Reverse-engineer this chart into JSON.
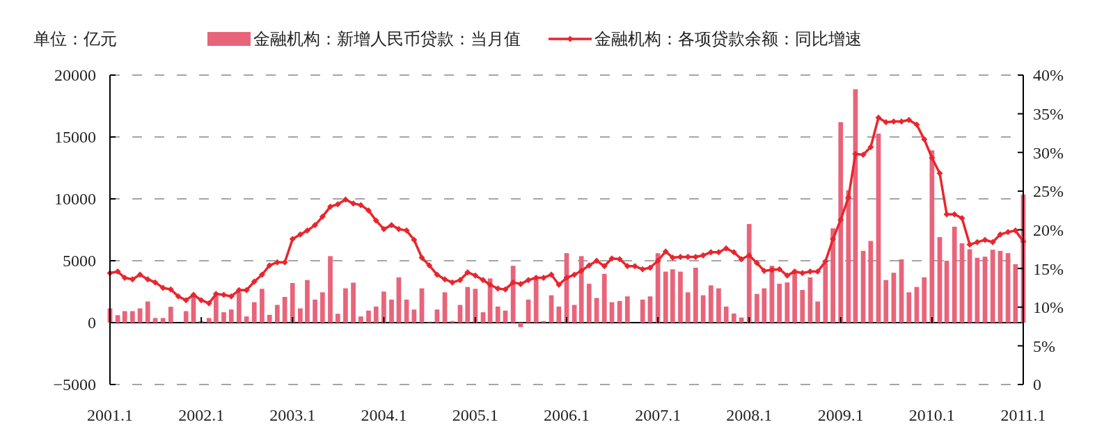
{
  "chart_data": {
    "type": "bar",
    "annotations": [
      "单位：亿元"
    ],
    "x": [
      "2001-01",
      "2001-02",
      "2001-03",
      "2001-04",
      "2001-05",
      "2001-06",
      "2001-07",
      "2001-08",
      "2001-09",
      "2001-10",
      "2001-11",
      "2001-12",
      "2002-01",
      "2002-02",
      "2002-03",
      "2002-04",
      "2002-05",
      "2002-06",
      "2002-07",
      "2002-08",
      "2002-09",
      "2002-10",
      "2002-11",
      "2002-12",
      "2003-01",
      "2003-02",
      "2003-03",
      "2003-04",
      "2003-05",
      "2003-06",
      "2003-07",
      "2003-08",
      "2003-09",
      "2003-10",
      "2003-11",
      "2003-12",
      "2004-01",
      "2004-02",
      "2004-03",
      "2004-04",
      "2004-05",
      "2004-06",
      "2004-07",
      "2004-08",
      "2004-09",
      "2004-10",
      "2004-11",
      "2004-12",
      "2005-01",
      "2005-02",
      "2005-03",
      "2005-04",
      "2005-05",
      "2005-06",
      "2005-07",
      "2005-08",
      "2005-09",
      "2005-10",
      "2005-11",
      "2005-12",
      "2006-01",
      "2006-02",
      "2006-03",
      "2006-04",
      "2006-05",
      "2006-06",
      "2006-07",
      "2006-08",
      "2006-09",
      "2006-10",
      "2006-11",
      "2006-12",
      "2007-01",
      "2007-02",
      "2007-03",
      "2007-04",
      "2007-05",
      "2007-06",
      "2007-07",
      "2007-08",
      "2007-09",
      "2007-10",
      "2007-11",
      "2007-12",
      "2008-01",
      "2008-02",
      "2008-03",
      "2008-04",
      "2008-05",
      "2008-06",
      "2008-07",
      "2008-08",
      "2008-09",
      "2008-10",
      "2008-11",
      "2008-12",
      "2009-01",
      "2009-02",
      "2009-03",
      "2009-04",
      "2009-05",
      "2009-06",
      "2009-07",
      "2009-08",
      "2009-09",
      "2009-10",
      "2009-11",
      "2009-12",
      "2010-01",
      "2010-02",
      "2010-03",
      "2010-04",
      "2010-05",
      "2010-06",
      "2010-07",
      "2010-08",
      "2010-09",
      "2010-10",
      "2010-11",
      "2010-12",
      "2011-01"
    ],
    "xlim": [
      "2001-01",
      "2011-01"
    ],
    "xticks": [
      {
        "value": "2001-01",
        "label": "2001.1"
      },
      {
        "value": "2002-01",
        "label": "2002.1"
      },
      {
        "value": "2003-01",
        "label": "2003.1"
      },
      {
        "value": "2004-01",
        "label": "2004.1"
      },
      {
        "value": "2005-01",
        "label": "2005.1"
      },
      {
        "value": "2006-01",
        "label": "2006.1"
      },
      {
        "value": "2007-01",
        "label": "2007.1"
      },
      {
        "value": "2008-01",
        "label": "2008.1"
      },
      {
        "value": "2009-01",
        "label": "2009.1"
      },
      {
        "value": "2010-01",
        "label": "2010.1"
      },
      {
        "value": "2011-01",
        "label": "2011.1"
      }
    ],
    "ylim": [
      -5000,
      20000
    ],
    "yticks": [
      {
        "value": -5000,
        "label": "−5000"
      },
      0,
      5000,
      10000,
      15000,
      20000
    ],
    "y2lim": [
      0,
      40
    ],
    "y2ticks": [
      0,
      {
        "value": 5,
        "label": "5%"
      },
      {
        "value": 10,
        "label": "10%"
      },
      {
        "value": 15,
        "label": "15%"
      },
      {
        "value": 20,
        "label": "20%"
      },
      {
        "value": 25,
        "label": "25%"
      },
      {
        "value": 30,
        "label": "30%"
      },
      {
        "value": 35,
        "label": "35%"
      },
      {
        "value": 40,
        "label": "40%"
      }
    ],
    "grid": "y",
    "legend": "top",
    "series": [
      {
        "name": "金融机构：新增人民币贷款：当月值",
        "color": "#e8647a",
        "values": [
          1150,
          600,
          930,
          930,
          1150,
          1710,
          370,
          370,
          1280,
          0,
          930,
          2170,
          130,
          370,
          2170,
          840,
          1060,
          2450,
          500,
          1650,
          2730,
          630,
          1430,
          2080,
          3200,
          1150,
          3440,
          1860,
          2450,
          5370,
          720,
          2770,
          3230,
          500,
          970,
          1300,
          2510,
          1860,
          3660,
          1860,
          1060,
          2770,
          -90,
          1060,
          2450,
          130,
          1430,
          2880,
          2730,
          840,
          3570,
          1300,
          970,
          4590,
          -370,
          1860,
          3510,
          130,
          2210,
          1300,
          5610,
          1430,
          5370,
          3140,
          1990,
          3940,
          1650,
          1750,
          2120,
          0,
          1860,
          2120,
          5610,
          4120,
          4310,
          4120,
          2450,
          4440,
          2210,
          3010,
          2770,
          1300,
          740,
          410,
          7970,
          2320,
          2770,
          4590,
          3140,
          3250,
          4220,
          2640,
          3660,
          1710,
          4770,
          7620,
          16200,
          10700,
          18860,
          5800,
          6600,
          15270,
          3440,
          4030,
          5110,
          2450,
          2880,
          3660,
          13920,
          6910,
          5000,
          7750,
          6410,
          5930,
          5240,
          5330,
          5890,
          5800,
          5610,
          4720,
          10350
        ]
      },
      {
        "name": "金融机构：各项贷款余额：同比增速",
        "type": "line",
        "axis": "y2",
        "color": "#e8262e",
        "marker": "diamond",
        "line_style": "solid",
        "values": [
          14.4,
          14.6,
          13.8,
          13.6,
          14.2,
          13.6,
          13.2,
          12.5,
          12.3,
          11.4,
          10.9,
          11.6,
          10.9,
          10.5,
          11.7,
          11.6,
          11.4,
          12.2,
          12.2,
          13.3,
          14.2,
          15.4,
          15.8,
          15.8,
          18.8,
          19.4,
          19.9,
          20.6,
          21.7,
          23.0,
          23.3,
          23.9,
          23.4,
          23.2,
          22.5,
          21.2,
          20.1,
          20.6,
          20.1,
          19.9,
          18.7,
          16.4,
          15.4,
          14.2,
          13.6,
          13.2,
          13.5,
          14.5,
          14.1,
          13.5,
          12.9,
          12.4,
          12.3,
          13.2,
          13.0,
          13.5,
          13.8,
          13.8,
          14.2,
          12.9,
          13.8,
          14.2,
          14.7,
          15.4,
          16.0,
          15.3,
          16.3,
          16.2,
          15.3,
          15.3,
          14.9,
          15.1,
          16.0,
          17.2,
          16.4,
          16.5,
          16.5,
          16.5,
          16.7,
          17.1,
          17.1,
          17.6,
          17.1,
          16.2,
          16.7,
          15.7,
          14.7,
          14.8,
          14.9,
          14.1,
          14.6,
          14.4,
          14.6,
          14.6,
          15.9,
          18.8,
          21.3,
          24.2,
          29.8,
          29.7,
          30.7,
          34.5,
          33.9,
          34.0,
          34.0,
          34.2,
          33.6,
          31.7,
          29.3,
          27.3,
          22.0,
          22.0,
          21.5,
          18.1,
          18.4,
          18.7,
          18.4,
          19.4,
          19.7,
          19.9,
          18.5
        ]
      }
    ]
  }
}
